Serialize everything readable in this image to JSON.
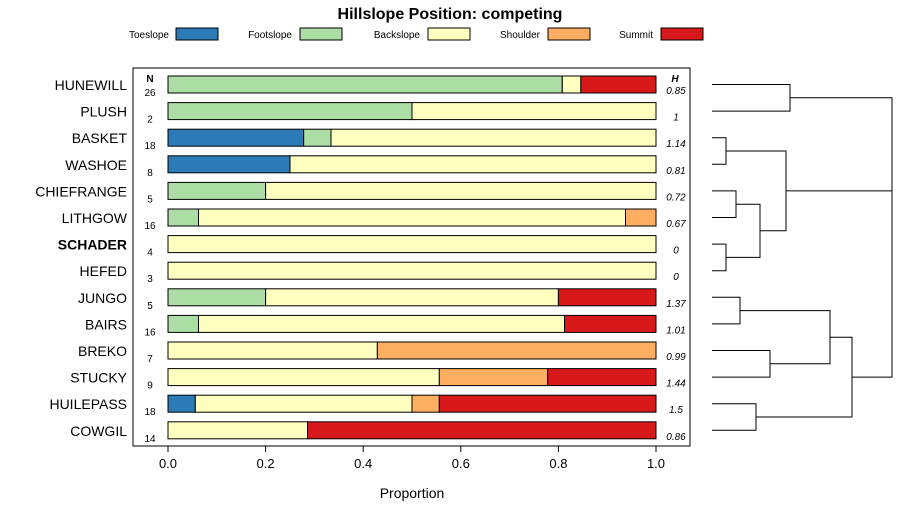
{
  "chart_data": {
    "type": "bar",
    "orientation": "horizontal-stacked",
    "title": "Hillslope Position: competing",
    "xlabel": "Proportion",
    "ylabel": "",
    "xlim": [
      0,
      1
    ],
    "x_ticks": [
      "0.0",
      "0.2",
      "0.4",
      "0.6",
      "0.8",
      "1.0"
    ],
    "x_tick_values": [
      0,
      0.2,
      0.4,
      0.6,
      0.8,
      1.0
    ],
    "n_header": "N",
    "h_header": "H",
    "legend_position": "top",
    "series": [
      {
        "name": "Toeslope",
        "color": "#2c7bb6"
      },
      {
        "name": "Footslope",
        "color": "#abdda4"
      },
      {
        "name": "Backslope",
        "color": "#ffffbf"
      },
      {
        "name": "Shoulder",
        "color": "#fdae61"
      },
      {
        "name": "Summit",
        "color": "#d7191c"
      }
    ],
    "rows": [
      {
        "label": "HUNEWILL",
        "n": "26",
        "h": "0.85",
        "bold": false,
        "values": [
          0,
          0.808,
          0.038,
          0,
          0.154
        ]
      },
      {
        "label": "PLUSH",
        "n": "2",
        "h": "1",
        "bold": false,
        "values": [
          0,
          0.5,
          0.5,
          0,
          0
        ]
      },
      {
        "label": "BASKET",
        "n": "18",
        "h": "1.14",
        "bold": false,
        "values": [
          0.278,
          0.056,
          0.666,
          0,
          0
        ]
      },
      {
        "label": "WASHOE",
        "n": "8",
        "h": "0.81",
        "bold": false,
        "values": [
          0.25,
          0,
          0.75,
          0,
          0
        ]
      },
      {
        "label": "CHIEFRANGE",
        "n": "5",
        "h": "0.72",
        "bold": false,
        "values": [
          0,
          0.2,
          0.8,
          0,
          0
        ]
      },
      {
        "label": "LITHGOW",
        "n": "16",
        "h": "0.67",
        "bold": false,
        "values": [
          0,
          0.0625,
          0.875,
          0.0625,
          0
        ]
      },
      {
        "label": "SCHADER",
        "n": "4",
        "h": "0",
        "bold": true,
        "values": [
          0,
          0,
          1,
          0,
          0
        ]
      },
      {
        "label": "HEFED",
        "n": "3",
        "h": "0",
        "bold": false,
        "values": [
          0,
          0,
          1,
          0,
          0
        ]
      },
      {
        "label": "JUNGO",
        "n": "5",
        "h": "1.37",
        "bold": false,
        "values": [
          0,
          0.2,
          0.6,
          0,
          0.2
        ]
      },
      {
        "label": "BAIRS",
        "n": "16",
        "h": "1.01",
        "bold": false,
        "values": [
          0,
          0.0625,
          0.75,
          0,
          0.1875
        ]
      },
      {
        "label": "BREKO",
        "n": "7",
        "h": "0.99",
        "bold": false,
        "values": [
          0,
          0,
          0.429,
          0.571,
          0
        ]
      },
      {
        "label": "STUCKY",
        "n": "9",
        "h": "1.44",
        "bold": false,
        "values": [
          0,
          0,
          0.556,
          0.222,
          0.222
        ]
      },
      {
        "label": "HUILEPASS",
        "n": "18",
        "h": "1.5",
        "bold": false,
        "values": [
          0.056,
          0,
          0.444,
          0.056,
          0.444
        ]
      },
      {
        "label": "COWGIL",
        "n": "14",
        "h": "0.86",
        "bold": false,
        "values": [
          0,
          0,
          0.286,
          0,
          0.714
        ]
      }
    ],
    "dendrogram_merges": [
      [
        "HUNEWILL",
        "PLUSH"
      ],
      [
        "BASKET",
        "WASHOE"
      ],
      [
        "CHIEFRANGE",
        "LITHGOW"
      ],
      [
        "SCHADER",
        "HEFED"
      ],
      [
        "JUNGO",
        "BAIRS"
      ],
      [
        "BREKO",
        "STUCKY"
      ],
      [
        "HUILEPASS",
        "COWGIL"
      ]
    ]
  }
}
